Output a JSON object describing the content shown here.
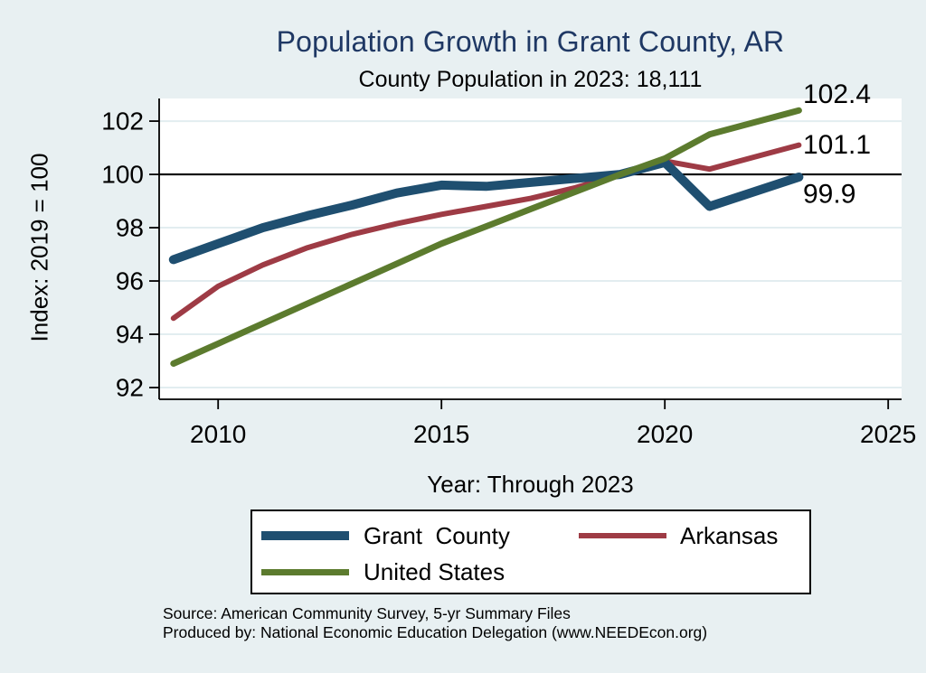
{
  "header": {
    "title": "Population Growth in Grant County, AR",
    "subtitle": "County Population in 2023: 18,111"
  },
  "source": {
    "line1": "Source: American Community Survey, 5-yr Summary Files",
    "line2": "Produced by: National Economic Education Delegation (www.NEEDEcon.org)"
  },
  "colors": {
    "background": "#e8f0f2",
    "plot_background": "#ffffff",
    "title": "#1f3864",
    "grid": "#e2edf0",
    "axis": "#000000",
    "reference_line": "#000000"
  },
  "chart_data": {
    "type": "line",
    "title": "Population Growth in Grant County, AR",
    "subtitle": "County Population in 2023: 18,111",
    "xlabel": "Year: Through 2023",
    "ylabel": "Index: 2019 = 100",
    "x": [
      2009,
      2010,
      2011,
      2012,
      2013,
      2014,
      2015,
      2016,
      2017,
      2018,
      2019,
      2020,
      2021,
      2022,
      2023
    ],
    "series": [
      {
        "name": "Grant  County",
        "color": "#1f4f70",
        "line_width": 10,
        "end_label": "99.9",
        "end_label_dy": 19,
        "values": [
          96.8,
          97.4,
          98.0,
          98.45,
          98.85,
          99.3,
          99.6,
          99.55,
          99.7,
          99.85,
          100.0,
          100.45,
          98.8,
          99.35,
          99.9
        ]
      },
      {
        "name": "Arkansas",
        "color": "#9e3b45",
        "line_width": 6,
        "end_label": "101.1",
        "end_label_dy": 0,
        "values": [
          94.6,
          95.8,
          96.6,
          97.25,
          97.75,
          98.15,
          98.5,
          98.8,
          99.1,
          99.5,
          100.0,
          100.5,
          100.2,
          100.65,
          101.1
        ]
      },
      {
        "name": "United States",
        "color": "#5c7b2e",
        "line_width": 7,
        "end_label": "102.4",
        "end_label_dy": -18,
        "values": [
          92.9,
          93.65,
          94.4,
          95.15,
          95.9,
          96.65,
          97.4,
          98.05,
          98.7,
          99.35,
          100.0,
          100.6,
          101.5,
          101.95,
          102.4
        ]
      }
    ],
    "draw_order": [
      1,
      0,
      2
    ],
    "xticks": [
      2010,
      2015,
      2020,
      2025
    ],
    "yticks": [
      92,
      94,
      96,
      98,
      100,
      102
    ],
    "xlim": [
      2008.68,
      2025.3
    ],
    "ylim": [
      91.56,
      102.85
    ],
    "refline_y": 100,
    "grid": "horizontal",
    "legend_position": "bottom"
  }
}
